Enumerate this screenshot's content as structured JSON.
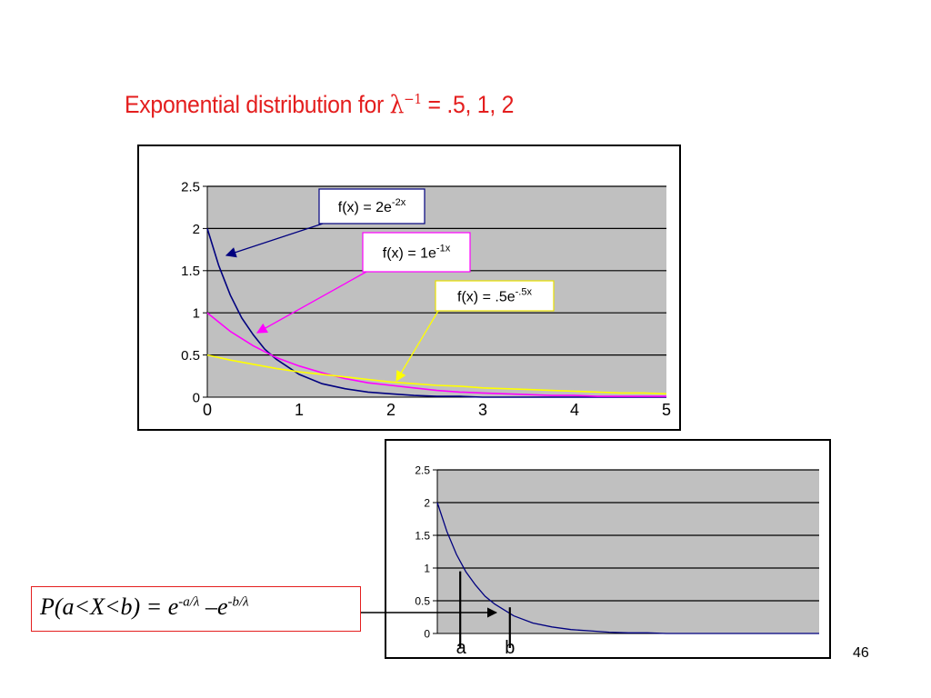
{
  "slide": {
    "title_text": "Exponential distribution for ",
    "title_symbol": "λ",
    "title_sup": "−1",
    "title_values": " = .5, 1, 2",
    "page_number": "46"
  },
  "formula": {
    "prefix": "P(a<X<b) = e",
    "exp_a": "-a/λ",
    "middle": " –e",
    "exp_b": "-b/λ"
  },
  "colors": {
    "title": "#e41e1e",
    "plot_background": "#c0c0c0",
    "series_2": "#00007f",
    "series_1": "#ff00ff",
    "series_05": "#ffff00",
    "formula_border": "#e41e1e"
  },
  "chart_data": [
    {
      "type": "line",
      "ylim": [
        0,
        2.5
      ],
      "xlim": [
        0,
        5
      ],
      "y_ticks": [
        "0",
        "0.5",
        "1",
        "1.5",
        "2",
        "2.5"
      ],
      "x_ticks": [
        "0",
        "1",
        "2",
        "3",
        "4",
        "5"
      ],
      "grid": "horizontal",
      "series": [
        {
          "label": "f(x) = 2e",
          "label_sup": "-2x",
          "color": "#00007f",
          "label_border": "#00007f",
          "x": [
            0,
            0.125,
            0.25,
            0.375,
            0.5,
            0.625,
            0.75,
            1.0,
            1.25,
            1.5,
            1.75,
            2.0,
            2.25,
            2.5,
            2.75,
            3.0,
            3.25,
            3.5,
            3.75,
            4.0,
            4.25,
            4.5,
            4.75,
            5.0
          ],
          "y": [
            2,
            1.56,
            1.21,
            0.94,
            0.74,
            0.57,
            0.45,
            0.27,
            0.16,
            0.1,
            0.06,
            0.04,
            0.02,
            0.01,
            0.01,
            0,
            0,
            0,
            0,
            0,
            0,
            0,
            0,
            0
          ]
        },
        {
          "label": "f(x) = 1e",
          "label_sup": "-1x",
          "color": "#ff00ff",
          "label_border": "#ff00ff",
          "x": [
            0,
            0.25,
            0.5,
            0.75,
            1.0,
            1.25,
            1.5,
            1.75,
            2.0,
            2.25,
            2.5,
            2.75,
            3.0,
            3.25,
            3.5,
            3.75,
            4.0,
            4.25,
            4.5,
            4.75,
            5.0
          ],
          "y": [
            1,
            0.78,
            0.61,
            0.47,
            0.37,
            0.29,
            0.22,
            0.17,
            0.14,
            0.11,
            0.08,
            0.06,
            0.05,
            0.04,
            0.03,
            0.02,
            0.02,
            0.01,
            0.01,
            0.01,
            0.01
          ]
        },
        {
          "label": "f(x) = .5e",
          "label_sup": "-.5x",
          "color": "#ffff00",
          "label_border": "#e8e000",
          "x": [
            0,
            0.25,
            0.5,
            0.75,
            1.0,
            1.25,
            1.5,
            1.75,
            2.0,
            2.25,
            2.5,
            2.75,
            3.0,
            3.25,
            3.5,
            3.75,
            4.0,
            4.25,
            4.5,
            4.75,
            5.0
          ],
          "y": [
            0.5,
            0.44,
            0.39,
            0.34,
            0.3,
            0.27,
            0.24,
            0.21,
            0.18,
            0.16,
            0.14,
            0.13,
            0.11,
            0.1,
            0.09,
            0.08,
            0.07,
            0.06,
            0.05,
            0.05,
            0.04
          ]
        }
      ]
    },
    {
      "type": "line",
      "ylim": [
        0,
        2.5
      ],
      "xlim": [
        0,
        5
      ],
      "y_ticks": [
        "0",
        "0.5",
        "1",
        "1.5",
        "2",
        "2.5"
      ],
      "grid": "horizontal",
      "series": [
        {
          "color": "#00007f",
          "x": [
            0,
            0.125,
            0.25,
            0.375,
            0.5,
            0.625,
            0.75,
            1.0,
            1.25,
            1.5,
            1.75,
            2.0,
            2.25,
            2.5,
            2.75,
            3.0,
            3.25,
            3.5,
            3.75,
            4.0,
            4.25,
            4.5,
            4.75,
            5.0
          ],
          "y": [
            2,
            1.56,
            1.21,
            0.94,
            0.74,
            0.57,
            0.45,
            0.27,
            0.16,
            0.1,
            0.06,
            0.04,
            0.02,
            0.01,
            0.01,
            0,
            0,
            0,
            0,
            0,
            0,
            0,
            0,
            0
          ]
        }
      ],
      "markers": [
        {
          "label": "a",
          "x": 0.3
        },
        {
          "label": "b",
          "x": 0.95
        }
      ]
    }
  ]
}
